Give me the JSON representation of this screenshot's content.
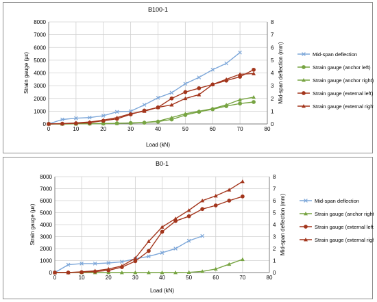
{
  "colors": {
    "blue": "#7da7d9",
    "green": "#77a442",
    "red": "#a3361d",
    "grid": "#d0d0d0",
    "axis": "#7f7f7f"
  },
  "chart_data": [
    {
      "type": "line",
      "title": "B100-1",
      "xlabel": "Load (kN)",
      "ylabel_left": "Strain gauge (με)",
      "ylabel_right": "Mid-span deflection (mm)",
      "xlim": [
        0,
        80
      ],
      "xticks": [
        "0",
        "10",
        "20",
        "30",
        "40",
        "50",
        "60",
        "70",
        "80"
      ],
      "ylim_left": [
        0,
        8000
      ],
      "yticks_left": [
        "0",
        "1000",
        "2000",
        "3000",
        "4000",
        "5000",
        "6000",
        "7000",
        "8000"
      ],
      "ylim_right": [
        0,
        8
      ],
      "yticks_right": [
        "0",
        "1",
        "2",
        "3",
        "4",
        "5",
        "6",
        "7",
        "8"
      ],
      "grid": true,
      "legend_position": "right",
      "series": [
        {
          "name": "Mid-span deflection",
          "axis": "right",
          "color": "blue",
          "marker": "x",
          "x": [
            0,
            5,
            10,
            15,
            20,
            25,
            30,
            35,
            40,
            45,
            50,
            55,
            60,
            65,
            70
          ],
          "y": [
            0,
            0.35,
            0.45,
            0.5,
            0.65,
            0.95,
            1.0,
            1.5,
            2.05,
            2.45,
            3.15,
            3.65,
            4.25,
            4.75,
            5.6
          ]
        },
        {
          "name": "Strain gauge (anchor left)",
          "axis": "left",
          "color": "green",
          "marker": "circle",
          "x": [
            0,
            5,
            10,
            15,
            20,
            25,
            30,
            35,
            40,
            45,
            50,
            55,
            60,
            65,
            70,
            75
          ],
          "y": [
            0,
            0,
            10,
            20,
            30,
            50,
            70,
            100,
            180,
            350,
            700,
            950,
            1150,
            1400,
            1600,
            1720
          ]
        },
        {
          "name": "Strain gauge (anchor right)",
          "axis": "left",
          "color": "green",
          "marker": "triangle",
          "x": [
            0,
            5,
            10,
            15,
            20,
            25,
            30,
            35,
            40,
            45,
            50,
            55,
            60,
            65,
            70,
            75
          ],
          "y": [
            0,
            0,
            10,
            20,
            30,
            50,
            80,
            120,
            220,
            500,
            800,
            1000,
            1200,
            1500,
            1900,
            2100
          ]
        },
        {
          "name": "Strain gauge (external left)",
          "axis": "left",
          "color": "red",
          "marker": "circle",
          "x": [
            0,
            5,
            10,
            15,
            20,
            25,
            30,
            35,
            40,
            45,
            50,
            55,
            60,
            65,
            70,
            75
          ],
          "y": [
            0,
            20,
            50,
            100,
            250,
            400,
            750,
            1050,
            1300,
            2000,
            2500,
            2800,
            3100,
            3400,
            3700,
            4250
          ]
        },
        {
          "name": "Strain gauge (external right)",
          "axis": "left",
          "color": "red",
          "marker": "triangle",
          "x": [
            0,
            5,
            10,
            15,
            20,
            25,
            30,
            35,
            40,
            45,
            50,
            55,
            60,
            65,
            70,
            75
          ],
          "y": [
            0,
            30,
            80,
            150,
            300,
            500,
            800,
            1000,
            1300,
            1500,
            2000,
            2300,
            3100,
            3500,
            3900,
            3950
          ]
        }
      ]
    },
    {
      "type": "line",
      "title": "B0-1",
      "xlabel": "Load (kN)",
      "ylabel_left": "Strain gauge (με)",
      "ylabel_right": "Mid-span deflection (mm)",
      "xlim": [
        0,
        80
      ],
      "xticks": [
        "0",
        "10",
        "20",
        "30",
        "40",
        "50",
        "60",
        "70",
        "80"
      ],
      "ylim_left": [
        0,
        8000
      ],
      "yticks_left": [
        "0",
        "1000",
        "2000",
        "3000",
        "4000",
        "5000",
        "6000",
        "7000",
        "8000"
      ],
      "ylim_right": [
        0,
        8
      ],
      "yticks_right": [
        "0",
        "1",
        "2",
        "3",
        "4",
        "5",
        "6",
        "7",
        "8"
      ],
      "grid": true,
      "legend_position": "right",
      "series": [
        {
          "name": "Mid-span deflection",
          "axis": "right",
          "color": "blue",
          "marker": "x",
          "x": [
            0,
            5,
            10,
            15,
            20,
            25,
            30,
            35,
            40,
            45,
            50,
            55
          ],
          "y": [
            0,
            0.65,
            0.75,
            0.75,
            0.8,
            0.9,
            1.15,
            1.35,
            1.65,
            2.0,
            2.65,
            3.05
          ]
        },
        {
          "name": "Strain gauge (anchor right)",
          "axis": "left",
          "color": "green",
          "marker": "triangle",
          "x": [
            0,
            5,
            10,
            15,
            20,
            25,
            30,
            35,
            40,
            45,
            50,
            55,
            60,
            65,
            70
          ],
          "y": [
            0,
            0,
            0,
            0,
            0,
            0,
            0,
            0,
            0,
            0,
            20,
            100,
            300,
            700,
            1100
          ]
        },
        {
          "name": "Strain gauge (external left)",
          "axis": "left",
          "color": "red",
          "marker": "circle",
          "x": [
            0,
            5,
            10,
            15,
            20,
            25,
            30,
            35,
            40,
            45,
            50,
            55,
            60,
            65,
            70
          ],
          "y": [
            0,
            0,
            30,
            80,
            180,
            450,
            950,
            1800,
            3400,
            4300,
            4700,
            5300,
            5600,
            6000,
            6350
          ]
        },
        {
          "name": "Strain gauge (external right)",
          "axis": "left",
          "color": "red",
          "marker": "triangle",
          "x": [
            0,
            5,
            10,
            15,
            20,
            25,
            30,
            35,
            40,
            45,
            50,
            55,
            60,
            65,
            70
          ],
          "y": [
            0,
            0,
            60,
            150,
            300,
            550,
            1200,
            2600,
            3800,
            4500,
            5200,
            6000,
            6400,
            6900,
            7600
          ]
        }
      ]
    }
  ]
}
